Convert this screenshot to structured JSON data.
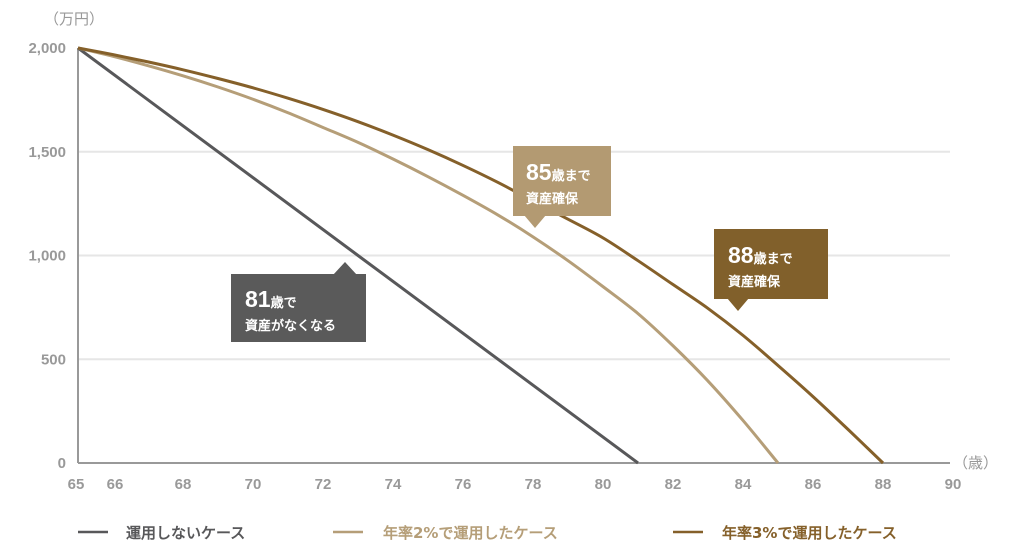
{
  "chart_data": {
    "type": "line",
    "title": "",
    "ylabel": "（万円）",
    "xlabel": "（歳）",
    "xlim": [
      65,
      90
    ],
    "ylim": [
      0,
      2000
    ],
    "x_ticks": [
      "65",
      "66",
      "68",
      "70",
      "72",
      "74",
      "76",
      "78",
      "80",
      "82",
      "84",
      "86",
      "88",
      "90"
    ],
    "y_ticks": [
      "0",
      "500",
      "1,000",
      "1,500",
      "2,000"
    ],
    "grid": "horizontal",
    "legend_position": "bottom",
    "series": [
      {
        "name": "運用しないケース",
        "color": "#58585a",
        "points": [
          [
            65,
            2000
          ],
          [
            81,
            0
          ]
        ]
      },
      {
        "name": "年率2%で運用したケース",
        "color": "#b59e78",
        "points": [
          [
            65,
            2000
          ],
          [
            66,
            1960
          ],
          [
            67,
            1915
          ],
          [
            68,
            1866
          ],
          [
            69,
            1812
          ],
          [
            70,
            1753
          ],
          [
            71,
            1688
          ],
          [
            72,
            1617
          ],
          [
            73,
            1545
          ],
          [
            74,
            1465
          ],
          [
            75,
            1380
          ],
          [
            76,
            1290
          ],
          [
            77,
            1195
          ],
          [
            78,
            1090
          ],
          [
            79,
            975
          ],
          [
            80,
            850
          ],
          [
            81,
            720
          ],
          [
            82,
            565
          ],
          [
            83,
            395
          ],
          [
            84,
            205
          ],
          [
            85,
            0
          ]
        ]
      },
      {
        "name": "年率3%で運用したケース",
        "color": "#85602a",
        "points": [
          [
            65,
            2000
          ],
          [
            66,
            1968
          ],
          [
            67,
            1933
          ],
          [
            68,
            1895
          ],
          [
            69,
            1853
          ],
          [
            70,
            1808
          ],
          [
            71,
            1758
          ],
          [
            72,
            1704
          ],
          [
            73,
            1645
          ],
          [
            74,
            1580
          ],
          [
            75,
            1510
          ],
          [
            76,
            1434
          ],
          [
            77,
            1352
          ],
          [
            78,
            1263
          ],
          [
            79,
            1175
          ],
          [
            80,
            1085
          ],
          [
            81,
            975
          ],
          [
            82,
            860
          ],
          [
            83,
            745
          ],
          [
            84,
            615
          ],
          [
            85,
            470
          ],
          [
            86,
            320
          ],
          [
            87,
            162
          ],
          [
            88,
            0
          ]
        ]
      }
    ],
    "annotations": [
      {
        "big": "81",
        "suffix": "歳で",
        "line2": "資産がなくなる",
        "color": "#5a5a5a"
      },
      {
        "big": "85",
        "suffix": "歳まで",
        "line2": "資産確保",
        "color": "#b39a72"
      },
      {
        "big": "88",
        "suffix": "歳まで",
        "line2": "資産確保",
        "color": "#81602b"
      }
    ]
  }
}
